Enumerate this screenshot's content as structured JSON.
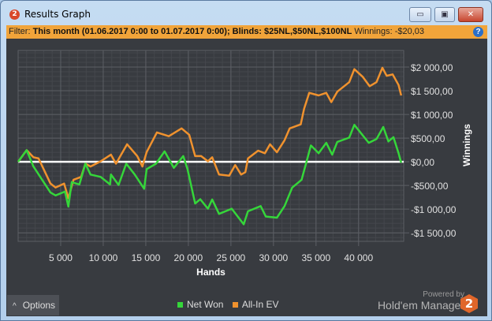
{
  "window": {
    "title": "Results Graph",
    "app_icon": "2",
    "buttons": {
      "minimize": "▭",
      "maximize": "▣",
      "close": "✕"
    }
  },
  "filter": {
    "label": "Filter:",
    "value": "This month (01.06.2017 0:00 to 01.07.2017 0:00); Blinds: $25NL,$50NL,$100NL",
    "winnings_label": "Winnings:",
    "winnings_value": "-$20,03",
    "help": "?"
  },
  "options": {
    "label": "Options",
    "icon": "^"
  },
  "branding": {
    "powered_by": "Powered by",
    "product": "Hold'em Manager",
    "logo": "2"
  },
  "colors": {
    "net_won": "#35d63a",
    "all_in_ev": "#f0922e",
    "zero_line": "#ffffff",
    "background": "#383b40",
    "filter_bar": "#f1a43a"
  },
  "chart_data": {
    "type": "line",
    "xlabel": "Hands",
    "ylabel": "Winnings",
    "xlim": [
      0,
      45300
    ],
    "ylim": [
      -1680,
      2350
    ],
    "x_ticks": [
      5000,
      10000,
      15000,
      20000,
      25000,
      30000,
      35000,
      40000
    ],
    "x_tick_labels": [
      "5 000",
      "10 000",
      "15 000",
      "20 000",
      "25 000",
      "30 000",
      "35 000",
      "40 000"
    ],
    "y_ticks": [
      2000,
      1500,
      1000,
      500,
      0,
      -500,
      -1000,
      -1500
    ],
    "y_tick_labels": [
      "$2 000,00",
      "$1 500,00",
      "$1 000,00",
      "$500,00",
      "$0,00",
      "-$500,00",
      "-$1 000,00",
      "-$1 500,00"
    ],
    "grid": true,
    "legend": "bottom",
    "series": [
      {
        "name": "Net Won",
        "x": [
          0,
          1000,
          1800,
          3800,
          4400,
          5500,
          5900,
          6300,
          7200,
          7900,
          8500,
          9700,
          10800,
          10900,
          11800,
          12700,
          13700,
          14800,
          15100,
          16200,
          17200,
          18300,
          19400,
          19900,
          20800,
          21400,
          22300,
          22800,
          23600,
          25100,
          26500,
          27000,
          28500,
          29100,
          30400,
          31300,
          32200,
          33300,
          33900,
          34400,
          35300,
          36200,
          36900,
          37500,
          38900,
          39500,
          41200,
          42100,
          42900,
          43500,
          44100,
          44700,
          45000
        ],
        "y": [
          0,
          245,
          -100,
          -650,
          -710,
          -630,
          -945,
          -430,
          -480,
          -40,
          -270,
          -320,
          -480,
          -270,
          -490,
          -40,
          -270,
          -570,
          -155,
          -40,
          220,
          -130,
          120,
          -155,
          -880,
          -790,
          -990,
          -795,
          -1100,
          -990,
          -1320,
          -1045,
          -935,
          -1155,
          -1180,
          -935,
          -545,
          -380,
          10,
          345,
          180,
          400,
          150,
          420,
          510,
          780,
          400,
          480,
          735,
          430,
          520,
          180,
          -20
        ]
      },
      {
        "name": "All-In EV",
        "x": [
          0,
          1000,
          1800,
          2400,
          3800,
          4400,
          5400,
          5900,
          6500,
          7400,
          7900,
          8500,
          9700,
          10900,
          11500,
          12800,
          14000,
          14600,
          15100,
          16300,
          17700,
          19200,
          20100,
          20800,
          21500,
          22300,
          22800,
          23600,
          24800,
          25500,
          26200,
          26700,
          27000,
          28200,
          29000,
          29600,
          30400,
          31300,
          31900,
          33200,
          33600,
          34200,
          35300,
          36200,
          36800,
          37500,
          38900,
          39500,
          40500,
          41300,
          42100,
          42800,
          43300,
          44000,
          44700,
          45000
        ],
        "y": [
          0,
          245,
          95,
          70,
          -460,
          -545,
          -460,
          -770,
          -380,
          -320,
          -40,
          -100,
          10,
          150,
          -40,
          370,
          120,
          -100,
          205,
          620,
          540,
          705,
          570,
          120,
          120,
          10,
          95,
          -270,
          -295,
          -70,
          -270,
          -220,
          70,
          235,
          180,
          370,
          200,
          455,
          705,
          790,
          1120,
          1455,
          1400,
          1455,
          1260,
          1480,
          1680,
          1955,
          1790,
          1595,
          1680,
          1985,
          1815,
          1845,
          1620,
          1400
        ]
      }
    ]
  }
}
